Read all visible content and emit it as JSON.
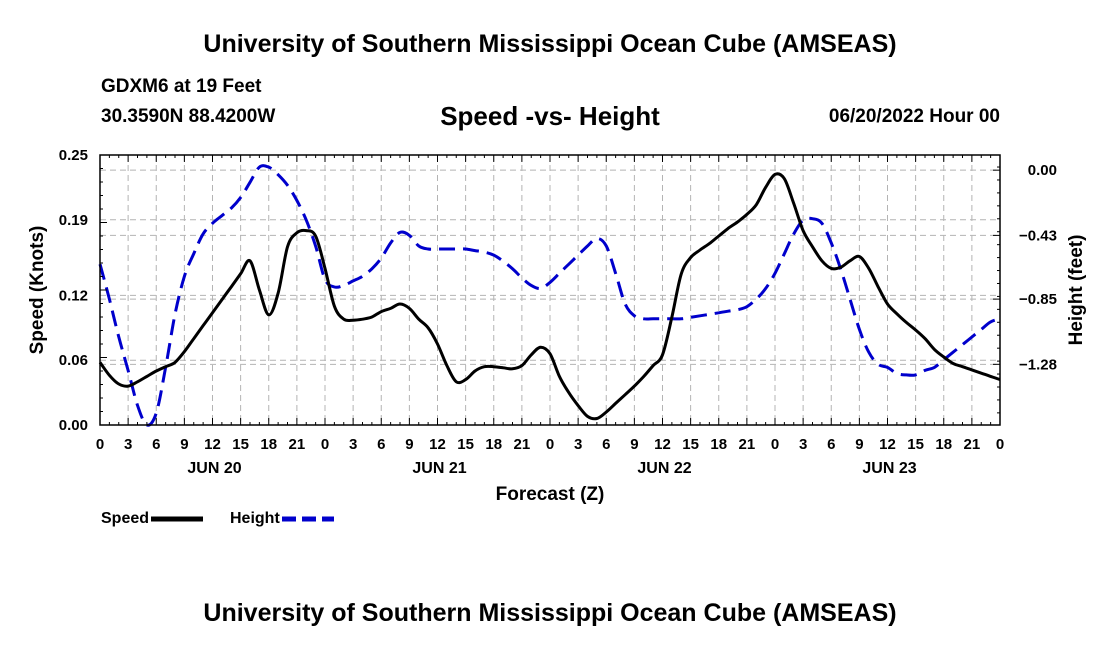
{
  "header": {
    "title": "University of Southern Mississippi Ocean Cube (AMSEAS)",
    "station": "GDXM6 at 19 Feet",
    "coords": "30.3590N  88.4200W",
    "date": "06/20/2022 Hour 00"
  },
  "footer": {
    "title": "University of Southern Mississippi Ocean Cube (AMSEAS)"
  },
  "legend": [
    {
      "label": "Speed",
      "color": "#000000",
      "dash": "solid"
    },
    {
      "label": "Height",
      "color": "#0000cc",
      "dash": "dashed"
    }
  ],
  "chart_data": {
    "type": "line",
    "title": "Speed -vs- Height",
    "xlabel": "Forecast (Z)",
    "ylabel": "Speed (Knots)",
    "y2label": "Height (feet)",
    "xlim": [
      0,
      96
    ],
    "ylim": [
      0,
      0.25
    ],
    "y2lim": [
      -1.68,
      0.1
    ],
    "x_tick_labels": [
      "0",
      "3",
      "6",
      "9",
      "12",
      "15",
      "18",
      "21",
      "0",
      "3",
      "6",
      "9",
      "12",
      "15",
      "18",
      "21",
      "0",
      "3",
      "6",
      "9",
      "12",
      "15",
      "18",
      "21",
      "0",
      "3",
      "6",
      "9",
      "12",
      "15",
      "18",
      "21",
      "0"
    ],
    "x_tick_hours": [
      0,
      3,
      6,
      9,
      12,
      15,
      18,
      21,
      24,
      27,
      30,
      33,
      36,
      39,
      42,
      45,
      48,
      51,
      54,
      57,
      60,
      63,
      66,
      69,
      72,
      75,
      78,
      81,
      84,
      87,
      90,
      93,
      96
    ],
    "day_labels": [
      {
        "hour": 12,
        "label": "JUN 20"
      },
      {
        "hour": 36,
        "label": "JUN 21"
      },
      {
        "hour": 60,
        "label": "JUN 22"
      },
      {
        "hour": 84,
        "label": "JUN 23"
      }
    ],
    "y_ticks": [
      0.0,
      0.06,
      0.12,
      0.19,
      0.25
    ],
    "y_tick_labels": [
      "0.00",
      "0.06",
      "0.12",
      "0.19",
      "0.25"
    ],
    "y2_ticks": [
      0.0,
      -0.43,
      -0.85,
      -1.28
    ],
    "y2_tick_labels": [
      "0.00",
      "−0.43",
      "−0.85",
      "−1.28"
    ],
    "series": [
      {
        "name": "Speed",
        "axis": "left",
        "color": "#000000",
        "dash": "solid",
        "x": [
          0,
          1,
          2,
          3,
          4,
          5,
          6,
          7,
          8,
          9,
          10,
          11,
          12,
          13,
          14,
          15,
          16,
          17,
          18,
          19,
          20,
          21,
          22,
          23,
          24,
          25,
          26,
          27,
          28,
          29,
          30,
          31,
          32,
          33,
          34,
          35,
          36,
          37,
          38,
          39,
          40,
          41,
          42,
          43,
          44,
          45,
          46,
          47,
          48,
          49,
          50,
          51,
          52,
          53,
          54,
          55,
          56,
          57,
          58,
          59,
          60,
          61,
          62,
          63,
          64,
          65,
          66,
          67,
          68,
          69,
          70,
          71,
          72,
          73,
          74,
          75,
          76,
          77,
          78,
          79,
          80,
          81,
          82,
          83,
          84,
          85,
          86,
          87,
          88,
          89,
          90,
          91,
          92,
          93,
          94,
          95,
          96
        ],
        "values": [
          0.058,
          0.046,
          0.038,
          0.036,
          0.04,
          0.045,
          0.05,
          0.054,
          0.058,
          0.068,
          0.08,
          0.092,
          0.104,
          0.116,
          0.128,
          0.14,
          0.152,
          0.125,
          0.102,
          0.122,
          0.165,
          0.178,
          0.18,
          0.175,
          0.145,
          0.11,
          0.098,
          0.097,
          0.098,
          0.1,
          0.105,
          0.108,
          0.112,
          0.108,
          0.098,
          0.09,
          0.075,
          0.055,
          0.04,
          0.042,
          0.05,
          0.054,
          0.054,
          0.053,
          0.052,
          0.055,
          0.065,
          0.072,
          0.066,
          0.045,
          0.03,
          0.018,
          0.008,
          0.006,
          0.012,
          0.02,
          0.028,
          0.036,
          0.045,
          0.055,
          0.065,
          0.1,
          0.14,
          0.155,
          0.162,
          0.168,
          0.175,
          0.182,
          0.188,
          0.195,
          0.204,
          0.22,
          0.232,
          0.228,
          0.205,
          0.18,
          0.165,
          0.152,
          0.145,
          0.146,
          0.152,
          0.156,
          0.145,
          0.128,
          0.112,
          0.103,
          0.095,
          0.088,
          0.08,
          0.07,
          0.063,
          0.057,
          0.054,
          0.051,
          0.048,
          0.045,
          0.042
        ]
      },
      {
        "name": "Height",
        "axis": "right",
        "color": "#0000cc",
        "dash": "dashed",
        "x": [
          0,
          1,
          2,
          3,
          4,
          5,
          6,
          7,
          8,
          9,
          10,
          11,
          12,
          13,
          14,
          15,
          16,
          17,
          18,
          19,
          20,
          21,
          22,
          23,
          24,
          25,
          26,
          27,
          28,
          29,
          30,
          31,
          32,
          33,
          34,
          35,
          36,
          37,
          38,
          39,
          40,
          41,
          42,
          43,
          44,
          45,
          46,
          47,
          48,
          49,
          50,
          51,
          52,
          53,
          54,
          55,
          56,
          57,
          58,
          59,
          60,
          61,
          62,
          63,
          64,
          65,
          66,
          67,
          68,
          69,
          70,
          71,
          72,
          73,
          74,
          75,
          76,
          77,
          78,
          79,
          80,
          81,
          82,
          83,
          84,
          85,
          86,
          87,
          88,
          89,
          90,
          91,
          92,
          93,
          94,
          95,
          96
        ],
        "values": [
          -0.62,
          -0.85,
          -1.1,
          -1.32,
          -1.55,
          -1.7,
          -1.6,
          -1.3,
          -0.95,
          -0.7,
          -0.55,
          -0.42,
          -0.35,
          -0.3,
          -0.25,
          -0.18,
          -0.08,
          0.02,
          0.02,
          -0.03,
          -0.1,
          -0.2,
          -0.33,
          -0.5,
          -0.72,
          -0.77,
          -0.76,
          -0.73,
          -0.7,
          -0.65,
          -0.58,
          -0.48,
          -0.41,
          -0.43,
          -0.5,
          -0.52,
          -0.52,
          -0.52,
          -0.52,
          -0.52,
          -0.53,
          -0.54,
          -0.56,
          -0.6,
          -0.65,
          -0.71,
          -0.76,
          -0.78,
          -0.74,
          -0.68,
          -0.62,
          -0.56,
          -0.5,
          -0.45,
          -0.5,
          -0.68,
          -0.88,
          -0.96,
          -0.98,
          -0.98,
          -0.98,
          -0.98,
          -0.98,
          -0.97,
          -0.96,
          -0.95,
          -0.94,
          -0.93,
          -0.92,
          -0.9,
          -0.85,
          -0.78,
          -0.68,
          -0.55,
          -0.42,
          -0.33,
          -0.32,
          -0.35,
          -0.48,
          -0.65,
          -0.85,
          -1.05,
          -1.2,
          -1.28,
          -1.3,
          -1.34,
          -1.35,
          -1.35,
          -1.32,
          -1.3,
          -1.25,
          -1.2,
          -1.15,
          -1.1,
          -1.05,
          -1.0,
          -0.98
        ]
      }
    ]
  }
}
